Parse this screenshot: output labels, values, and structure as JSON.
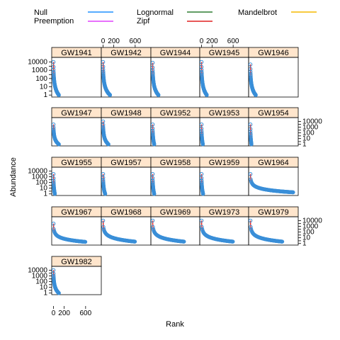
{
  "figure": {
    "xlabel": "Rank",
    "ylabel": "Abundance",
    "legend": [
      {
        "name": "Null",
        "color": "#1e90ff"
      },
      {
        "name": "Preemption",
        "color": "#e040fb"
      },
      {
        "name": "Lognormal",
        "color": "#2e7d32"
      },
      {
        "name": "Zipf",
        "color": "#e02020"
      },
      {
        "name": "Mandelbrot",
        "color": "#f5b800"
      }
    ],
    "x_ticks": [
      "0",
      "200",
      "600"
    ],
    "y_ticks": [
      "10000",
      "1000",
      "100",
      "10",
      "1"
    ]
  },
  "chart_data": {
    "type": "scatter",
    "subtype": "rank-abundance faceted (trellis) plot",
    "xlabel": "Rank",
    "ylabel": "Abundance",
    "xlim": [
      -20,
      880
    ],
    "ylim": [
      0.7,
      20000
    ],
    "y_scale": "log",
    "x_ticks": [
      0,
      200,
      600
    ],
    "y_ticks": [
      1,
      3,
      10,
      30,
      100,
      300,
      1000,
      3000,
      10000
    ],
    "points_color": "#3a8fd8",
    "legend_placement": "top",
    "panels": [
      {
        "name": "GW1941",
        "n": 100,
        "max": 10000
      },
      {
        "name": "GW1942",
        "n": 130,
        "max": 10000
      },
      {
        "name": "GW1944",
        "n": 110,
        "max": 8000
      },
      {
        "name": "GW1945",
        "n": 100,
        "max": 10000
      },
      {
        "name": "GW1946",
        "n": 100,
        "max": 5000
      },
      {
        "name": "GW1947",
        "n": 100,
        "max": 3000
      },
      {
        "name": "GW1948",
        "n": 100,
        "max": 10000
      },
      {
        "name": "GW1952",
        "n": 30,
        "max": 3000
      },
      {
        "name": "GW1953",
        "n": 25,
        "max": 3000
      },
      {
        "name": "GW1954",
        "n": 20,
        "max": 3000
      },
      {
        "name": "GW1955",
        "n": 25,
        "max": 3000
      },
      {
        "name": "GW1957",
        "n": 40,
        "max": 3000
      },
      {
        "name": "GW1958",
        "n": 30,
        "max": 3000
      },
      {
        "name": "GW1959",
        "n": 30,
        "max": 3000
      },
      {
        "name": "GW1964",
        "n": 800,
        "max": 3000
      },
      {
        "name": "GW1967",
        "n": 600,
        "max": 3000
      },
      {
        "name": "GW1968",
        "n": 600,
        "max": 10000
      },
      {
        "name": "GW1969",
        "n": 600,
        "max": 10000
      },
      {
        "name": "GW1973",
        "n": 600,
        "max": 10000
      },
      {
        "name": "GW1979",
        "n": 600,
        "max": 10000
      },
      {
        "name": "GW1982",
        "n": 100,
        "max": 10000
      }
    ]
  }
}
